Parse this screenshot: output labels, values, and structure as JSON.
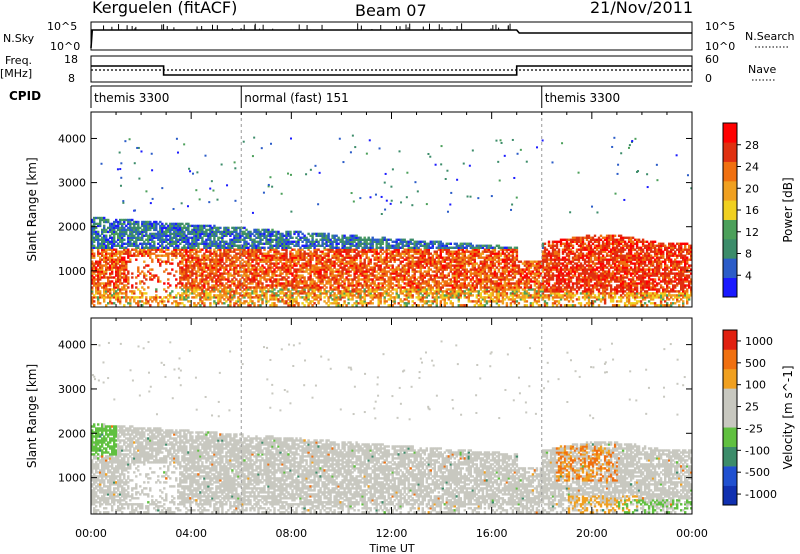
{
  "header": {
    "station": "Kerguelen (fitACF)",
    "beam": "Beam 07",
    "date": "21/Nov/2011"
  },
  "side_labels": {
    "nsky": "N.Sky",
    "freq": "Freq.",
    "mhz": "[MHz]",
    "cpid": "CPID",
    "nsearch": "N.Search",
    "nave": "Nave"
  },
  "small_ticks": {
    "nsky": [
      "10^5",
      "10^0"
    ],
    "nsearch": [
      "10^5",
      "10^0"
    ],
    "freq": [
      "18",
      "8"
    ],
    "nave": [
      "60",
      "0"
    ]
  },
  "cpid_segments": [
    {
      "label": "themis 3300",
      "start": 0,
      "end": 6
    },
    {
      "label": "normal (fast) 151",
      "start": 6,
      "end": 18
    },
    {
      "label": "themis 3300",
      "start": 18,
      "end": 24
    }
  ],
  "chart_data": [
    {
      "type": "heatmap",
      "name": "power",
      "ylabel": "Slant Range [km]",
      "xlabel": "Time UT",
      "xlim": [
        0,
        24
      ],
      "ylim": [
        180,
        4600
      ],
      "yticks": [
        "1000",
        "2000",
        "3000",
        "4000"
      ],
      "xticks": [
        "00:00",
        "04:00",
        "08:00",
        "12:00",
        "16:00",
        "20:00",
        "00:00"
      ],
      "colorbar": {
        "label": "Power [dB]",
        "ticks": [
          "4",
          "8",
          "12",
          "16",
          "20",
          "24",
          "28"
        ],
        "range": [
          0,
          30
        ]
      }
    },
    {
      "type": "heatmap",
      "name": "velocity",
      "ylabel": "Slant Range [km]",
      "xlabel": "Time UT",
      "xlim": [
        0,
        24
      ],
      "ylim": [
        180,
        4600
      ],
      "yticks": [
        "1000",
        "2000",
        "3000",
        "4000"
      ],
      "xticks": [
        "00:00",
        "04:00",
        "08:00",
        "12:00",
        "16:00",
        "20:00",
        "00:00"
      ],
      "colorbar": {
        "label": "Velocity [m s^-1]",
        "ticks": [
          "1000",
          "500",
          "100",
          "25",
          "-25",
          "-100",
          "-500",
          "-1000"
        ]
      }
    }
  ],
  "colors": {
    "power_scale": [
      "#1a1aff",
      "#2b5cc8",
      "#3c8c6a",
      "#4ca05a",
      "#f0d020",
      "#f0a020",
      "#f07010",
      "#e03010",
      "#ff0000"
    ],
    "velocity_scale": [
      "#1030b0",
      "#2050d0",
      "#3c8c6a",
      "#60c040",
      "#c8c8c0",
      "#c8c8c0",
      "#f0a020",
      "#f07010",
      "#e02010"
    ]
  }
}
